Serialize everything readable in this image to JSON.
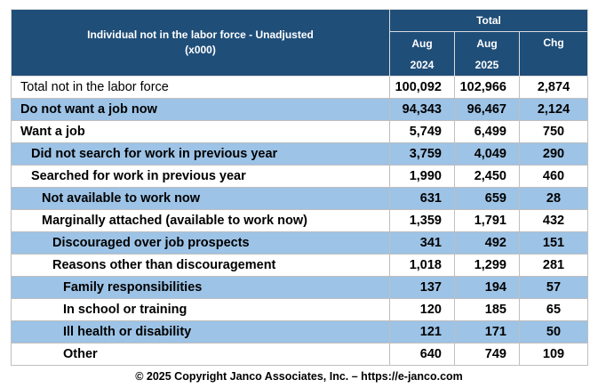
{
  "header": {
    "title": [
      "Individual not in the labor force - Unadjusted",
      "(x000)"
    ],
    "group": "Total",
    "columns": [
      {
        "month": "Aug",
        "year": "2024"
      },
      {
        "month": "Aug",
        "year": "2025"
      },
      {
        "label": "Chg"
      }
    ]
  },
  "table": {
    "rows": [
      {
        "label": "Total not in the labor force",
        "level": 0,
        "cells": [
          "100,092",
          "102,966",
          "2,874"
        ]
      },
      {
        "label": "Do not want a job now",
        "level": 0,
        "cells": [
          "94,343",
          "96,467",
          "2,124"
        ]
      },
      {
        "label": "Want a job",
        "level": 0,
        "cells": [
          "5,749",
          "6,499",
          "750"
        ]
      },
      {
        "label": "Did not search for work in previous year",
        "level": 1,
        "cells": [
          "3,759",
          "4,049",
          "290"
        ]
      },
      {
        "label": "Searched for work in previous year",
        "level": 1,
        "cells": [
          "1,990",
          "2,450",
          "460"
        ]
      },
      {
        "label": "Not available to work now",
        "level": 2,
        "cells": [
          "631",
          "659",
          "28"
        ]
      },
      {
        "label": "Marginally attached (available to work now)",
        "level": 2,
        "cells": [
          "1,359",
          "1,791",
          "432"
        ]
      },
      {
        "label": "Discouraged over job prospects",
        "level": 3,
        "cells": [
          "341",
          "492",
          "151"
        ]
      },
      {
        "label": "Reasons other than discouragement",
        "level": 3,
        "cells": [
          "1,018",
          "1,299",
          "281"
        ]
      },
      {
        "label": "Family responsibilities",
        "level": 4,
        "cells": [
          "137",
          "194",
          "57"
        ]
      },
      {
        "label": "In school or training",
        "level": 4,
        "cells": [
          "120",
          "185",
          "65"
        ]
      },
      {
        "label": "Ill health or disability",
        "level": 4,
        "cells": [
          "121",
          "171",
          "50"
        ]
      },
      {
        "label": "Other",
        "level": 4,
        "cells": [
          "640",
          "749",
          "109"
        ]
      }
    ]
  },
  "footer": "© 2025 Copyright Janco Associates, Inc. – https://e-janco.com"
}
